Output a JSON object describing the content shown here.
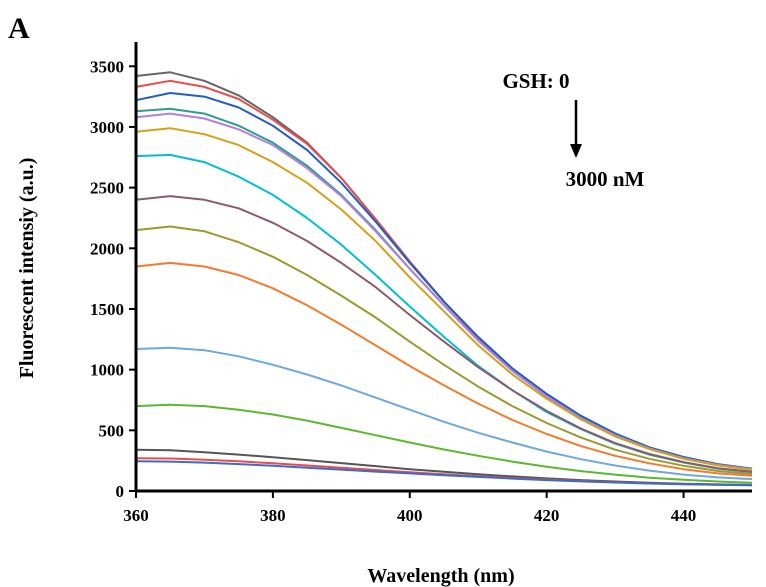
{
  "panel_label": "A",
  "chart_data": {
    "type": "line",
    "title": "",
    "xlabel": "Wavelength (nm)",
    "ylabel": "Fluorescent intensiy (a.u.)",
    "xlim": [
      360,
      450
    ],
    "ylim": [
      0,
      3700
    ],
    "xticks": [
      360,
      380,
      400,
      420,
      440
    ],
    "yticks": [
      0,
      500,
      1000,
      1500,
      2000,
      2500,
      3000,
      3500
    ],
    "grid": false,
    "legend": "none",
    "annotation": {
      "top": "GSH: 0",
      "bottom": "3000 nM",
      "arrow": "down"
    },
    "x": [
      360,
      365,
      370,
      375,
      380,
      385,
      390,
      395,
      400,
      405,
      410,
      415,
      420,
      425,
      430,
      435,
      440,
      445,
      450
    ],
    "series": [
      {
        "color": "#666666",
        "values": [
          3420,
          3450,
          3380,
          3260,
          3080,
          2870,
          2580,
          2240,
          1890,
          1560,
          1260,
          1000,
          780,
          600,
          460,
          350,
          270,
          215,
          180
        ]
      },
      {
        "color": "#e84c4c",
        "values": [
          3330,
          3380,
          3330,
          3230,
          3060,
          2860,
          2580,
          2240,
          1890,
          1560,
          1260,
          1000,
          780,
          600,
          460,
          350,
          270,
          215,
          180
        ]
      },
      {
        "color": "#1f5fc4",
        "values": [
          3220,
          3280,
          3250,
          3160,
          3010,
          2810,
          2540,
          2220,
          1880,
          1560,
          1270,
          1010,
          800,
          620,
          475,
          360,
          280,
          222,
          185
        ]
      },
      {
        "color": "#2a9d8f",
        "values": [
          3130,
          3150,
          3110,
          3010,
          2870,
          2680,
          2440,
          2150,
          1830,
          1530,
          1240,
          990,
          780,
          600,
          460,
          350,
          270,
          215,
          180
        ]
      },
      {
        "color": "#b57edc",
        "values": [
          3080,
          3110,
          3070,
          2980,
          2850,
          2660,
          2430,
          2140,
          1830,
          1530,
          1240,
          990,
          780,
          600,
          460,
          350,
          270,
          215,
          180
        ]
      },
      {
        "color": "#d4a017",
        "values": [
          2960,
          2990,
          2940,
          2850,
          2710,
          2540,
          2320,
          2060,
          1760,
          1480,
          1200,
          960,
          760,
          590,
          450,
          345,
          265,
          210,
          175
        ]
      },
      {
        "color": "#00c0d0",
        "values": [
          2760,
          2770,
          2710,
          2590,
          2440,
          2250,
          2030,
          1780,
          1520,
          1270,
          1030,
          830,
          650,
          510,
          390,
          300,
          235,
          185,
          155
        ]
      },
      {
        "color": "#8c5a6b",
        "values": [
          2400,
          2430,
          2400,
          2330,
          2210,
          2060,
          1880,
          1680,
          1450,
          1230,
          1020,
          830,
          660,
          515,
          395,
          305,
          238,
          188,
          158
        ]
      },
      {
        "color": "#9a9a2e",
        "values": [
          2150,
          2180,
          2140,
          2050,
          1930,
          1780,
          1610,
          1430,
          1230,
          1040,
          860,
          700,
          560,
          440,
          340,
          265,
          208,
          165,
          140
        ]
      },
      {
        "color": "#f27b2c",
        "values": [
          1850,
          1880,
          1850,
          1780,
          1670,
          1530,
          1370,
          1200,
          1030,
          870,
          720,
          585,
          470,
          370,
          290,
          228,
          180,
          145,
          125
        ]
      },
      {
        "color": "#6fa8dc",
        "values": [
          1170,
          1180,
          1160,
          1110,
          1040,
          960,
          870,
          770,
          670,
          570,
          480,
          400,
          325,
          262,
          210,
          168,
          135,
          112,
          98
        ]
      },
      {
        "color": "#5cb82e",
        "values": [
          700,
          710,
          700,
          670,
          630,
          580,
          520,
          460,
          400,
          342,
          290,
          242,
          200,
          164,
          135,
          110,
          92,
          78,
          68
        ]
      },
      {
        "color": "#555555",
        "values": [
          340,
          335,
          320,
          300,
          278,
          255,
          230,
          205,
          180,
          158,
          138,
          120,
          104,
          90,
          78,
          68,
          60,
          54,
          50
        ]
      },
      {
        "color": "#e84c4c",
        "values": [
          270,
          268,
          258,
          245,
          228,
          210,
          192,
          173,
          155,
          138,
          122,
          107,
          94,
          82,
          72,
          64,
          57,
          52,
          48
        ]
      },
      {
        "color": "#3b6cc7",
        "values": [
          245,
          242,
          234,
          222,
          208,
          192,
          176,
          160,
          145,
          130,
          116,
          102,
          90,
          79,
          70,
          62,
          56,
          51,
          47
        ]
      }
    ]
  }
}
